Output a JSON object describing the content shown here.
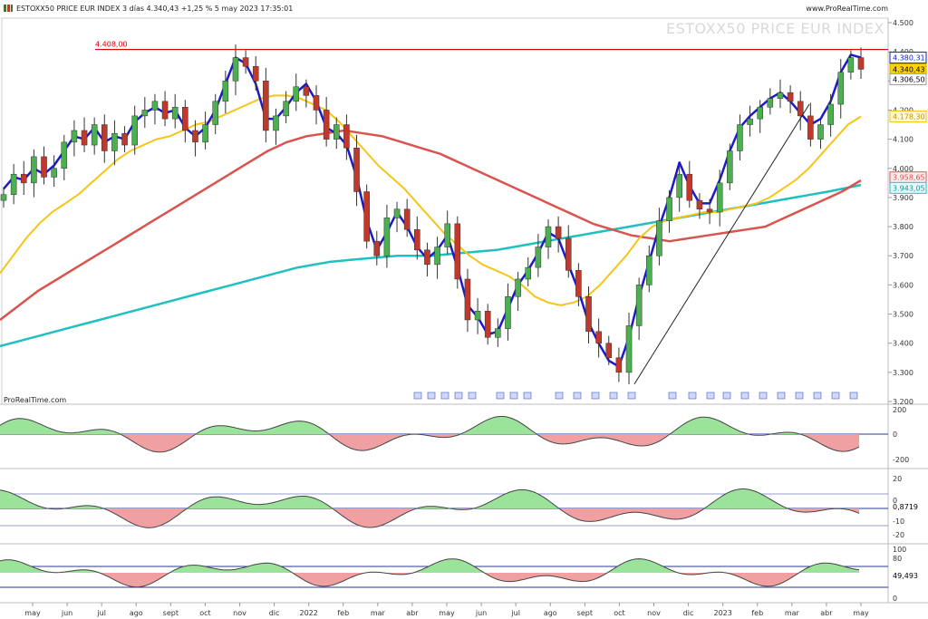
{
  "header": {
    "title": "ESTOXX50 PRICE EUR INDEX 3 días 4.340,43 +1,25 % 5 may 2023 17:35:01",
    "source_top": "www.ProRealTime.com",
    "source_bottom": "ProRealTime.com",
    "watermark": "ESTOXX50 PRICE EUR INDEX"
  },
  "colors": {
    "up_candle": "#4caf50",
    "down_candle": "#c0392b",
    "fast_ma": "#1a1acc",
    "ma_yellow": "#f5c518",
    "ma_red": "#d9534f",
    "ma_cyan": "#20c0c0",
    "resistance": "#dd0000",
    "trendline": "#222222",
    "osc_pos": "#9be29b",
    "osc_neg": "#f0a0a0"
  },
  "price_labels": {
    "resistance": "4.408,00",
    "ma_fast": "4.380,31",
    "last": "4.340,43",
    "low": "4.306,50",
    "ma_yellow": "4.178,30",
    "ma_red": "3.958,65",
    "ma_cyan": "3.943,05"
  },
  "osc_labels": {
    "osc2": "0,8719",
    "osc3": "49,493"
  },
  "chart_data": {
    "type": "line",
    "title": "ESTOXX50 PRICE EUR INDEX",
    "price_axis": {
      "ticks": [
        "4.500",
        "4.400",
        "4.300",
        "4.200",
        "4.100",
        "4.000",
        "3.900",
        "3.800",
        "3.700",
        "3.600",
        "3.500",
        "3.400",
        "3.300",
        "3.200"
      ],
      "ylim": [
        3200,
        4500
      ]
    },
    "x_axis": {
      "ticks": [
        "may",
        "jun",
        "jul",
        "ago",
        "sept",
        "oct",
        "nov",
        "dic",
        "2022",
        "feb",
        "mar",
        "abr",
        "may",
        "jun",
        "jul",
        "ago",
        "sept",
        "oct",
        "nov",
        "dic",
        "2023",
        "feb",
        "mar",
        "abr",
        "may"
      ]
    },
    "price_close": [
      3910,
      3980,
      3950,
      4040,
      3970,
      4000,
      4090,
      4130,
      4080,
      4150,
      4060,
      4120,
      4080,
      4180,
      4200,
      4230,
      4170,
      4210,
      4130,
      4090,
      4150,
      4230,
      4300,
      4380,
      4350,
      4300,
      4130,
      4180,
      4230,
      4280,
      4250,
      4200,
      4100,
      4150,
      4070,
      3920,
      3750,
      3700,
      3830,
      3860,
      3790,
      3720,
      3670,
      3730,
      3810,
      3620,
      3480,
      3510,
      3420,
      3450,
      3560,
      3620,
      3660,
      3730,
      3800,
      3760,
      3650,
      3560,
      3440,
      3400,
      3350,
      3300,
      3460,
      3600,
      3700,
      3820,
      3900,
      3980,
      3890,
      3860,
      3850,
      3950,
      4060,
      4150,
      4170,
      4210,
      4240,
      4260,
      4230,
      4180,
      4100,
      4150,
      4220,
      4330,
      4380,
      4340
    ],
    "ma_fast": [
      3930,
      3970,
      3960,
      4000,
      3980,
      4010,
      4060,
      4110,
      4100,
      4140,
      4090,
      4110,
      4100,
      4160,
      4190,
      4210,
      4190,
      4200,
      4140,
      4110,
      4140,
      4200,
      4290,
      4380,
      4360,
      4290,
      4170,
      4170,
      4210,
      4260,
      4290,
      4230,
      4140,
      4120,
      4080,
      3970,
      3820,
      3720,
      3780,
      3850,
      3800,
      3730,
      3690,
      3720,
      3770,
      3660,
      3530,
      3490,
      3430,
      3440,
      3520,
      3600,
      3650,
      3710,
      3780,
      3760,
      3670,
      3580,
      3470,
      3400,
      3340,
      3320,
      3420,
      3560,
      3680,
      3800,
      3900,
      4020,
      3940,
      3880,
      3880,
      3960,
      4060,
      4140,
      4180,
      4210,
      4240,
      4260,
      4230,
      4190,
      4150,
      4170,
      4230,
      4330,
      4390,
      4380
    ],
    "ma_yellow": [
      3640,
      3700,
      3760,
      3810,
      3850,
      3880,
      3910,
      3950,
      3990,
      4030,
      4060,
      4080,
      4100,
      4110,
      4130,
      4150,
      4160,
      4180,
      4200,
      4220,
      4240,
      4250,
      4250,
      4240,
      4220,
      4200,
      4160,
      4110,
      4060,
      4010,
      3970,
      3930,
      3880,
      3830,
      3780,
      3740,
      3700,
      3670,
      3650,
      3630,
      3600,
      3560,
      3540,
      3530,
      3540,
      3560,
      3600,
      3650,
      3700,
      3760,
      3800,
      3820,
      3830,
      3840,
      3850,
      3850,
      3860,
      3870,
      3880,
      3900,
      3930,
      3960,
      4000,
      4050,
      4100,
      4150,
      4178
    ],
    "ma_red": [
      3480,
      3530,
      3580,
      3620,
      3660,
      3700,
      3740,
      3780,
      3820,
      3860,
      3900,
      3940,
      3980,
      4020,
      4060,
      4090,
      4110,
      4120,
      4130,
      4120,
      4110,
      4090,
      4070,
      4050,
      4020,
      3990,
      3960,
      3930,
      3900,
      3870,
      3840,
      3810,
      3790,
      3770,
      3760,
      3750,
      3760,
      3770,
      3780,
      3790,
      3800,
      3830,
      3860,
      3890,
      3920,
      3959
    ],
    "ma_cyan": [
      3390,
      3420,
      3450,
      3480,
      3510,
      3540,
      3570,
      3600,
      3630,
      3660,
      3680,
      3690,
      3700,
      3700,
      3710,
      3720,
      3740,
      3760,
      3780,
      3800,
      3820,
      3840,
      3860,
      3880,
      3900,
      3920,
      3943
    ]
  }
}
